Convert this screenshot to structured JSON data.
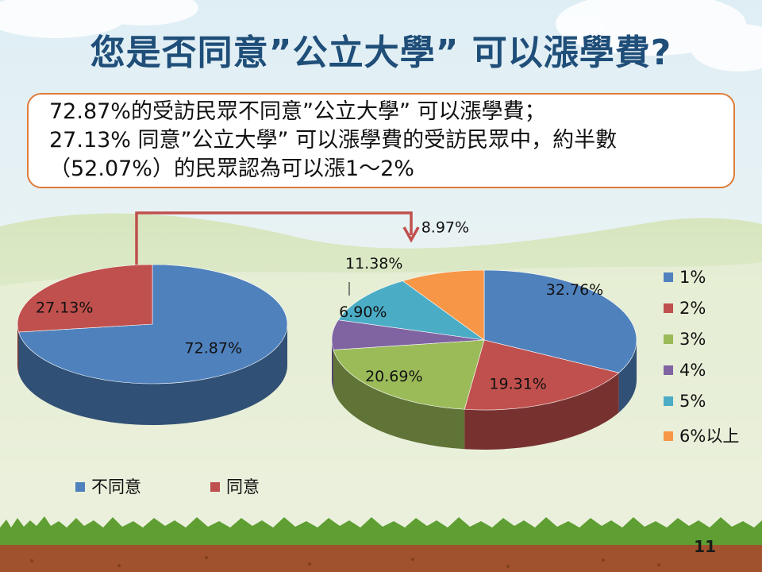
{
  "slide": {
    "title": "您是否同意”公立大學” 可以漲學費?",
    "callout_lines": [
      "72.87%的受訪民眾不同意”公立大學” 可以漲學費；",
      "27.13% 同意”公立大學” 可以漲學費的受訪民眾中，約半數",
      "（52.07%）的民眾認為可以漲1～2%"
    ],
    "page_number": "11"
  },
  "colors": {
    "title": "#1f4e79",
    "callout_border": "#e07b39",
    "connector": "#c0504d"
  },
  "chart_data": [
    {
      "type": "pie",
      "title": "",
      "categories": [
        "不同意",
        "同意"
      ],
      "values": [
        72.87,
        27.13
      ],
      "labels": [
        "72.87%",
        "27.13%"
      ],
      "colors": [
        "#4f81bd",
        "#c0504d"
      ],
      "legend": "bottom",
      "style": "3d"
    },
    {
      "type": "pie",
      "title": "",
      "categories": [
        "1%",
        "2%",
        "3%",
        "4%",
        "5%",
        "6%以上"
      ],
      "values": [
        32.76,
        19.31,
        20.69,
        6.9,
        11.38,
        8.97
      ],
      "labels": [
        "32.76%",
        "19.31%",
        "20.69%",
        "6.90%",
        "11.38%",
        "8.97%"
      ],
      "colors": [
        "#4f81bd",
        "#c0504d",
        "#9bbb59",
        "#8064a2",
        "#4bacc6",
        "#f79646"
      ],
      "legend": "right",
      "style": "3d"
    }
  ]
}
